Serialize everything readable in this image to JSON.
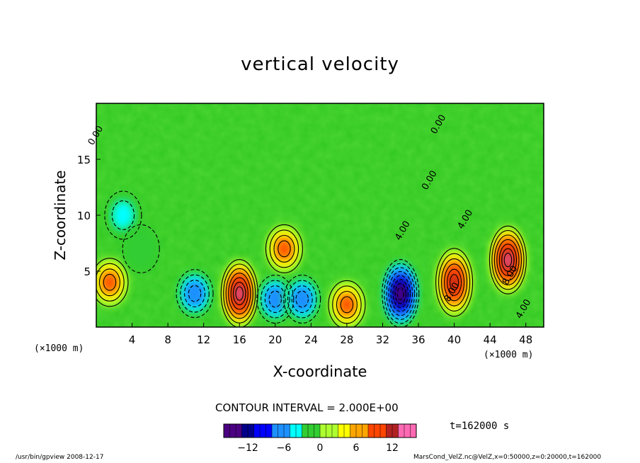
{
  "chart_data": {
    "type": "heatmap",
    "title": "vertical velocity",
    "xlabel": "X-coordinate",
    "ylabel": "Z-coordinate",
    "x_unit": "(×1000 m)",
    "x_unit_right": "(×1000 m)",
    "xlim": [
      0,
      50
    ],
    "ylim": [
      0,
      20
    ],
    "xticks": [
      4,
      8,
      12,
      16,
      20,
      24,
      28,
      32,
      36,
      40,
      44,
      48
    ],
    "yticks": [
      5,
      10,
      15
    ],
    "contour_interval_text": "CONTOUR INTERVAL = 2.000E+00",
    "colorbar": {
      "range": [
        -16,
        16
      ],
      "ticks": [
        -12,
        -6,
        0,
        6,
        12
      ],
      "colors": [
        "#4b0082",
        "#00008b",
        "#0000ff",
        "#1e90ff",
        "#00ffff",
        "#32cd32",
        "#adff2f",
        "#ffff00",
        "#ffa500",
        "#ff4500",
        "#b22222",
        "#ff69b4"
      ]
    },
    "cells": [
      {
        "x": 1.5,
        "z": 4,
        "w": 7
      },
      {
        "x": 3,
        "z": 10,
        "w": -4
      },
      {
        "x": 5,
        "z": 7,
        "w": -2
      },
      {
        "x": 11,
        "z": 3,
        "w": -7
      },
      {
        "x": 16,
        "z": 3,
        "w": 13
      },
      {
        "x": 20,
        "z": 2.5,
        "w": -7
      },
      {
        "x": 21,
        "z": 7,
        "w": 8
      },
      {
        "x": 23,
        "z": 2.5,
        "w": -7
      },
      {
        "x": 28,
        "z": 2,
        "w": 8
      },
      {
        "x": 34,
        "z": 3,
        "w": -15
      },
      {
        "x": 40,
        "z": 4,
        "w": 12
      },
      {
        "x": 46,
        "z": 6,
        "w": 13
      }
    ],
    "contour_labels": [
      {
        "text": "4.00",
        "x": 34.5,
        "z": 8.5
      },
      {
        "text": "0.00",
        "x": 38.5,
        "z": 18
      },
      {
        "text": "0.00",
        "x": 37.5,
        "z": 13
      },
      {
        "text": "4.00",
        "x": 41.5,
        "z": 9.5
      },
      {
        "text": "4.00",
        "x": 48,
        "z": 1.5
      },
      {
        "text": "8.00",
        "x": 46.5,
        "z": 4.5
      },
      {
        "text": "8.00",
        "x": 40,
        "z": 3
      },
      {
        "text": "0.00",
        "x": 0.2,
        "z": 17
      }
    ],
    "time_label": "t=162000 s"
  },
  "footer": {
    "left": "/usr/bin/gpview  2008-12-17",
    "right": "MarsCond_VelZ.nc@VelZ,x=0:50000,z=0:20000,t=162000"
  }
}
